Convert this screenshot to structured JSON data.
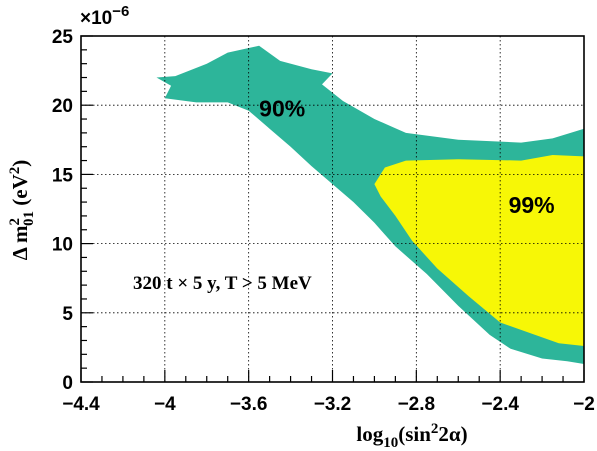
{
  "chart_data": {
    "type": "contour",
    "xlabel": {
      "base": "log",
      "sub": "10",
      "arg_open": "(sin",
      "sup": "2",
      "arg_rest": "2α)"
    },
    "ylabel": {
      "prefix": "Δ m",
      "sup": "2",
      "sub": "01",
      "unit_open": " (eV",
      "unit_sup": "2",
      "unit_close": ")"
    },
    "y_multiplier": {
      "base": "×10",
      "exp": "−6"
    },
    "xlim": [
      -4.4,
      -2.0
    ],
    "ylim": [
      0,
      25
    ],
    "x_ticks": [
      -4.4,
      -4.0,
      -3.6,
      -3.2,
      -2.8,
      -2.4,
      -2.0
    ],
    "x_tick_labels": [
      "−4.4",
      "−4",
      "−3.6",
      "−3.2",
      "−2.8",
      "−2.4",
      "−2"
    ],
    "y_ticks": [
      0,
      5,
      10,
      15,
      20,
      25
    ],
    "y_tick_labels": [
      "0",
      "5",
      "10",
      "15",
      "20",
      "25"
    ],
    "grid": true,
    "annotation": "320 t  × 5 y, T > 5 MeV",
    "regions": [
      {
        "label": "90%",
        "color": "#2db59a",
        "label_pos": [
          -3.44,
          19.2
        ],
        "boundary": [
          [
            -3.95,
            22.1
          ],
          [
            -3.8,
            23.0
          ],
          [
            -3.7,
            23.8
          ],
          [
            -3.55,
            24.3
          ],
          [
            -3.45,
            23.2
          ],
          [
            -3.3,
            22.6
          ],
          [
            -3.2,
            22.3
          ],
          [
            -3.25,
            21.5
          ],
          [
            -3.15,
            20.3
          ],
          [
            -3.0,
            19.0
          ],
          [
            -2.85,
            18.0
          ],
          [
            -2.6,
            17.5
          ],
          [
            -2.3,
            17.3
          ],
          [
            -2.15,
            17.6
          ],
          [
            -2.0,
            18.3
          ],
          [
            -2.0,
            1.3
          ],
          [
            -2.08,
            1.5
          ],
          [
            -2.2,
            1.7
          ],
          [
            -2.35,
            2.4
          ],
          [
            -2.45,
            3.4
          ],
          [
            -2.6,
            5.5
          ],
          [
            -2.75,
            7.8
          ],
          [
            -2.9,
            9.8
          ],
          [
            -3.0,
            11.5
          ],
          [
            -3.1,
            13.0
          ],
          [
            -3.2,
            14.3
          ],
          [
            -3.3,
            15.6
          ],
          [
            -3.4,
            17.0
          ],
          [
            -3.5,
            18.3
          ],
          [
            -3.6,
            19.6
          ],
          [
            -3.7,
            20.2
          ],
          [
            -3.85,
            20.2
          ],
          [
            -4.0,
            20.5
          ],
          [
            -3.97,
            21.4
          ],
          [
            -4.04,
            22.0
          ]
        ]
      },
      {
        "label": "99%",
        "color": "#f7f706",
        "label_pos": [
          -2.25,
          12.2
        ],
        "boundary": [
          [
            -2.95,
            15.5
          ],
          [
            -2.85,
            16.0
          ],
          [
            -2.6,
            16.1
          ],
          [
            -2.3,
            16.0
          ],
          [
            -2.15,
            16.4
          ],
          [
            -2.0,
            16.3
          ],
          [
            -2.0,
            2.6
          ],
          [
            -2.12,
            2.8
          ],
          [
            -2.25,
            3.5
          ],
          [
            -2.4,
            4.3
          ],
          [
            -2.55,
            6.2
          ],
          [
            -2.7,
            8.2
          ],
          [
            -2.82,
            10.2
          ],
          [
            -2.9,
            12.0
          ],
          [
            -2.97,
            13.4
          ],
          [
            -3.0,
            14.3
          ]
        ]
      }
    ]
  }
}
